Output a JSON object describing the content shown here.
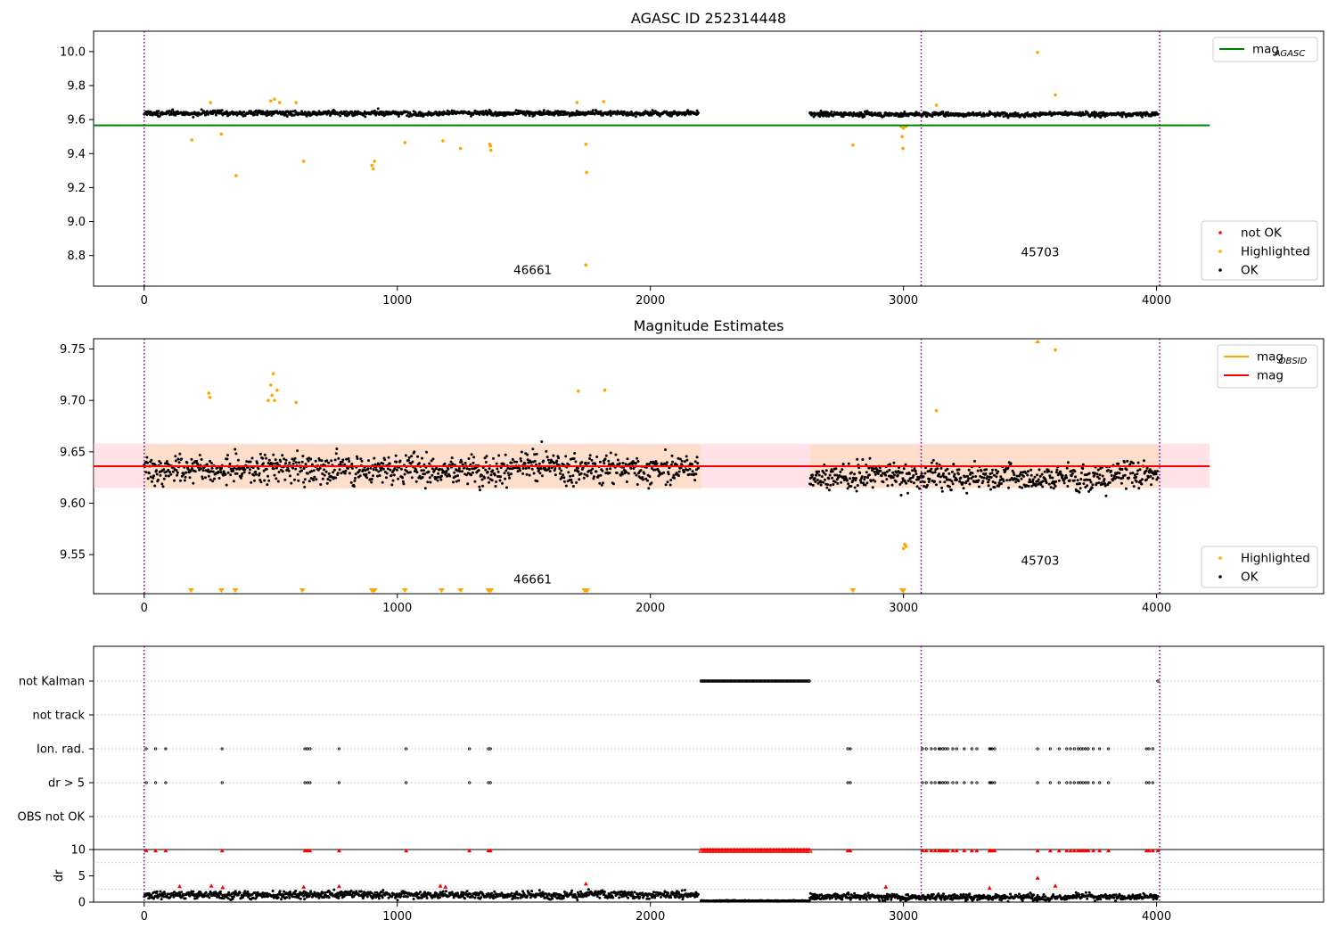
{
  "figure": {
    "colors": {
      "ok": "#000000",
      "highlighted": "#ffa500",
      "not_ok": "#ff0000",
      "mag_agasc_line": "#008000",
      "mag_line": "#ff0000",
      "mag_obsid_line": "#ffa500",
      "band_fill": "#ffc0cb",
      "obsid_band_fill": "#ffdab9",
      "obs_divider": "#800080",
      "grid": "#b0b0b0"
    }
  },
  "chart_data": [
    {
      "id": "panel1",
      "type": "scatter",
      "title": "AGASC ID 252314448",
      "xlim": [
        -200,
        4660
      ],
      "ylim": [
        8.62,
        10.12
      ],
      "xticks": [
        0,
        1000,
        2000,
        3000,
        4000
      ],
      "yticks": [
        8.8,
        9.0,
        9.2,
        9.4,
        9.6,
        9.8,
        10.0
      ],
      "ytick_labels": [
        "8.8",
        "9.0",
        "9.2",
        "9.4",
        "9.6",
        "9.8",
        "10.0"
      ],
      "obs_boundaries": [
        0,
        3070,
        4012
      ],
      "obsid_labels": [
        {
          "text": "46661",
          "x": 1535,
          "y": 8.69
        },
        {
          "text": "45703",
          "x": 3540,
          "y": 8.795
        }
      ],
      "lines": [
        {
          "name": "mag_AGASC",
          "y": 9.566,
          "x_range": [
            -200,
            4210
          ],
          "color": "#008000"
        }
      ],
      "ok_bands": [
        {
          "x_range": [
            0,
            2190
          ],
          "center": 9.638,
          "spread": 0.018
        },
        {
          "x_range": [
            2630,
            4005
          ],
          "center": 9.632,
          "spread": 0.017
        }
      ],
      "highlighted_points": [
        [
          188,
          9.48
        ],
        [
          262,
          9.7
        ],
        [
          305,
          9.515
        ],
        [
          363,
          9.27
        ],
        [
          500,
          9.71
        ],
        [
          515,
          9.72
        ],
        [
          535,
          9.7
        ],
        [
          630,
          9.355
        ],
        [
          600,
          9.7
        ],
        [
          900,
          9.33
        ],
        [
          905,
          9.31
        ],
        [
          910,
          9.355
        ],
        [
          1030,
          9.465
        ],
        [
          1180,
          9.475
        ],
        [
          1250,
          9.43
        ],
        [
          1365,
          9.455
        ],
        [
          1368,
          9.445
        ],
        [
          1370,
          9.42
        ],
        [
          1710,
          9.7
        ],
        [
          1745,
          9.455
        ],
        [
          1748,
          9.29
        ],
        [
          1745,
          8.745
        ],
        [
          1815,
          9.705
        ],
        [
          2800,
          9.45
        ],
        [
          2990,
          9.56
        ],
        [
          2995,
          9.5
        ],
        [
          2998,
          9.43
        ],
        [
          3000,
          9.55
        ],
        [
          3010,
          9.56
        ],
        [
          3130,
          9.685
        ],
        [
          3530,
          9.995
        ],
        [
          3600,
          9.745
        ]
      ],
      "legends": [
        {
          "position": "top-right",
          "entries": [
            {
              "label": "mag",
              "subscript": "AGASC",
              "kind": "line",
              "color": "#008000"
            }
          ]
        },
        {
          "position": "bottom-right",
          "entries": [
            {
              "label": "not OK",
              "kind": "dot",
              "color": "#ff0000"
            },
            {
              "label": "Highlighted",
              "kind": "dot",
              "color": "#ffa500"
            },
            {
              "label": "OK",
              "kind": "dot",
              "color": "#000000"
            }
          ]
        }
      ]
    },
    {
      "id": "panel2",
      "type": "scatter",
      "title": "Magnitude Estimates",
      "xlim": [
        -200,
        4660
      ],
      "ylim": [
        9.512,
        9.76
      ],
      "xticks": [
        0,
        1000,
        2000,
        3000,
        4000
      ],
      "yticks": [
        9.55,
        9.6,
        9.65,
        9.7,
        9.75
      ],
      "ytick_labels": [
        "9.55",
        "9.60",
        "9.65",
        "9.70",
        "9.75"
      ],
      "obs_boundaries": [
        0,
        3070,
        4012
      ],
      "obsid_labels": [
        {
          "text": "46661",
          "x": 1535,
          "y": 9.522
        },
        {
          "text": "45703",
          "x": 3540,
          "y": 9.54
        }
      ],
      "mag": 9.636,
      "mag_band": [
        9.615,
        9.658
      ],
      "mag_line_x_range": [
        -200,
        4210
      ],
      "obsid_bands": [
        {
          "x_range": [
            0,
            2200
          ],
          "low": 9.614,
          "high": 9.657
        },
        {
          "x_range": [
            2630,
            4010
          ],
          "low": 9.615,
          "high": 9.657
        }
      ],
      "ok_bands": [
        {
          "x_range": [
            0,
            2190
          ],
          "center": 9.634,
          "spread": 0.018
        },
        {
          "x_range": [
            2630,
            4005
          ],
          "center": 9.626,
          "spread": 0.016
        }
      ],
      "highlighted_points": [
        [
          255,
          9.707
        ],
        [
          260,
          9.703
        ],
        [
          490,
          9.7
        ],
        [
          500,
          9.715
        ],
        [
          505,
          9.705
        ],
        [
          510,
          9.726
        ],
        [
          515,
          9.7
        ],
        [
          525,
          9.71
        ],
        [
          600,
          9.698
        ],
        [
          1715,
          9.709
        ],
        [
          1820,
          9.71
        ],
        [
          3000,
          9.556
        ],
        [
          3005,
          9.56
        ],
        [
          3010,
          9.558
        ],
        [
          3130,
          9.69
        ],
        [
          3530,
          9.757
        ],
        [
          3600,
          9.749
        ]
      ],
      "clipped_markers_x": [
        185,
        305,
        360,
        625,
        900,
        905,
        910,
        1030,
        1175,
        1250,
        1360,
        1365,
        1370,
        1740,
        1745,
        1750,
        2800,
        2995,
        3000
      ],
      "legends": [
        {
          "position": "top-right",
          "entries": [
            {
              "label": "mag",
              "subscript": "OBSID",
              "kind": "line",
              "color": "#ffa500"
            },
            {
              "label": "mag",
              "kind": "line",
              "color": "#ff0000"
            }
          ]
        },
        {
          "position": "bottom-right",
          "entries": [
            {
              "label": "Highlighted",
              "kind": "dot",
              "color": "#ffa500"
            },
            {
              "label": "OK",
              "kind": "dot",
              "color": "#000000"
            }
          ]
        }
      ]
    },
    {
      "id": "panel3",
      "type": "scatter",
      "xlim": [
        -200,
        4660
      ],
      "flag_rows": [
        "not Kalman",
        "not track",
        "Ion. rad.",
        "dr > 5",
        "OBS not OK"
      ],
      "obs_boundaries": [
        0,
        3070,
        4012
      ],
      "flags": {
        "not Kalman": {
          "ranges": [
            [
              2200,
              2630
            ]
          ],
          "points": [
            4005
          ]
        },
        "not track": {
          "ranges": [],
          "points": []
        },
        "Ion. rad.": {
          "points": [
            8,
            45,
            85,
            308,
            635,
            645,
            655,
            770,
            1035,
            1285,
            1360,
            1368,
            2780,
            2790,
            3075,
            3090,
            3110,
            3125,
            3140,
            3145,
            3155,
            3165,
            3175,
            3195,
            3210,
            3240,
            3270,
            3290,
            3340,
            3345,
            3350,
            3360,
            3530,
            3580,
            3615,
            3645,
            3660,
            3675,
            3690,
            3700,
            3710,
            3720,
            3730,
            3750,
            3775,
            3810,
            3960,
            3970,
            3985
          ]
        },
        "dr > 5": {
          "points": [
            8,
            45,
            85,
            308,
            635,
            645,
            655,
            770,
            1035,
            1285,
            1360,
            1368,
            2780,
            2790,
            3075,
            3090,
            3110,
            3125,
            3140,
            3145,
            3155,
            3165,
            3175,
            3195,
            3210,
            3240,
            3270,
            3290,
            3340,
            3345,
            3350,
            3360,
            3530,
            3580,
            3615,
            3645,
            3660,
            3675,
            3690,
            3700,
            3710,
            3720,
            3730,
            3750,
            3775,
            3810,
            3960,
            3970,
            3985
          ]
        },
        "OBS not OK": {
          "ranges": [],
          "points": []
        }
      }
    },
    {
      "id": "panel4",
      "type": "scatter",
      "xlim": [
        -200,
        4660
      ],
      "ylim": [
        0,
        10
      ],
      "ylabel": "dr",
      "xticks": [
        0,
        1000,
        2000,
        3000,
        4000
      ],
      "yticks": [
        0,
        5,
        10
      ],
      "ytick_labels": [
        "0",
        "5",
        "10"
      ],
      "obs_boundaries": [
        0,
        3070,
        4012
      ],
      "ok_bands": [
        {
          "x_range": [
            0,
            2190
          ],
          "center": 1.4,
          "spread": 0.9
        },
        {
          "x_range": [
            2200,
            2630
          ],
          "center": 0.25,
          "spread": 0.12
        },
        {
          "x_range": [
            2630,
            4005
          ],
          "center": 1.0,
          "spread": 0.75
        }
      ],
      "not_ok_points": [
        [
          8,
          9.8
        ],
        [
          45,
          9.8
        ],
        [
          85,
          9.8
        ],
        [
          308,
          9.8
        ],
        [
          635,
          9.8
        ],
        [
          645,
          9.8
        ],
        [
          655,
          9.8
        ],
        [
          770,
          9.8
        ],
        [
          1035,
          9.8
        ],
        [
          1285,
          9.8
        ],
        [
          1360,
          9.8
        ],
        [
          1368,
          9.8
        ],
        [
          2780,
          9.8
        ],
        [
          2790,
          9.8
        ],
        [
          3075,
          9.8
        ],
        [
          3090,
          9.8
        ],
        [
          3110,
          9.8
        ],
        [
          3125,
          9.8
        ],
        [
          3140,
          9.8
        ],
        [
          3145,
          9.8
        ],
        [
          3155,
          9.8
        ],
        [
          3165,
          9.8
        ],
        [
          3175,
          9.8
        ],
        [
          3195,
          9.8
        ],
        [
          3210,
          9.8
        ],
        [
          3240,
          9.8
        ],
        [
          3270,
          9.8
        ],
        [
          3290,
          9.8
        ],
        [
          3340,
          9.8
        ],
        [
          3345,
          9.8
        ],
        [
          3350,
          9.8
        ],
        [
          3360,
          9.8
        ],
        [
          3530,
          9.8
        ],
        [
          3580,
          9.8
        ],
        [
          3615,
          9.8
        ],
        [
          3645,
          9.8
        ],
        [
          3660,
          9.8
        ],
        [
          3675,
          9.8
        ],
        [
          3690,
          9.8
        ],
        [
          3700,
          9.8
        ],
        [
          3710,
          9.8
        ],
        [
          3720,
          9.8
        ],
        [
          3730,
          9.8
        ],
        [
          3750,
          9.8
        ],
        [
          3775,
          9.8
        ],
        [
          3810,
          9.8
        ],
        [
          3960,
          9.8
        ],
        [
          3970,
          9.8
        ],
        [
          3985,
          9.8
        ],
        [
          4005,
          9.8
        ],
        [
          140,
          3.0
        ],
        [
          265,
          3.1
        ],
        [
          310,
          2.8
        ],
        [
          630,
          2.9
        ],
        [
          770,
          3.0
        ],
        [
          1170,
          3.1
        ],
        [
          1190,
          2.9
        ],
        [
          1745,
          3.5
        ],
        [
          3530,
          4.6
        ],
        [
          3600,
          3.1
        ],
        [
          3340,
          2.7
        ],
        [
          2930,
          2.9
        ]
      ],
      "not_ok_dense_ranges": [
        [
          2200,
          2630
        ]
      ]
    }
  ]
}
